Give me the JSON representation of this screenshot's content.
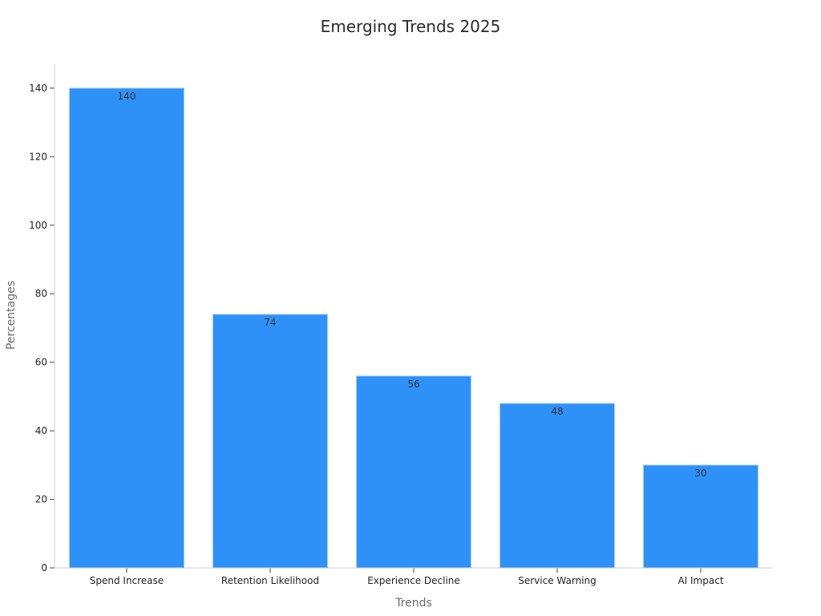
{
  "chart_data": {
    "type": "bar",
    "title": "Emerging Trends 2025",
    "xlabel": "Trends",
    "ylabel": "Percentages",
    "categories": [
      "Spend Increase",
      "Retention Likelihood",
      "Experience Decline",
      "Service Warning",
      "AI Impact"
    ],
    "values": [
      140,
      74,
      56,
      48,
      30
    ],
    "data_labels": [
      "140",
      "74",
      "56",
      "48",
      "30"
    ],
    "ylim": [
      0,
      147
    ],
    "yticks": [
      0,
      20,
      40,
      60,
      80,
      100,
      120,
      140
    ],
    "ytick_labels": [
      "0",
      "20",
      "40",
      "60",
      "80",
      "100",
      "120",
      "140"
    ],
    "bar_color": "#2e91f7",
    "grid": false,
    "legend": "none"
  }
}
